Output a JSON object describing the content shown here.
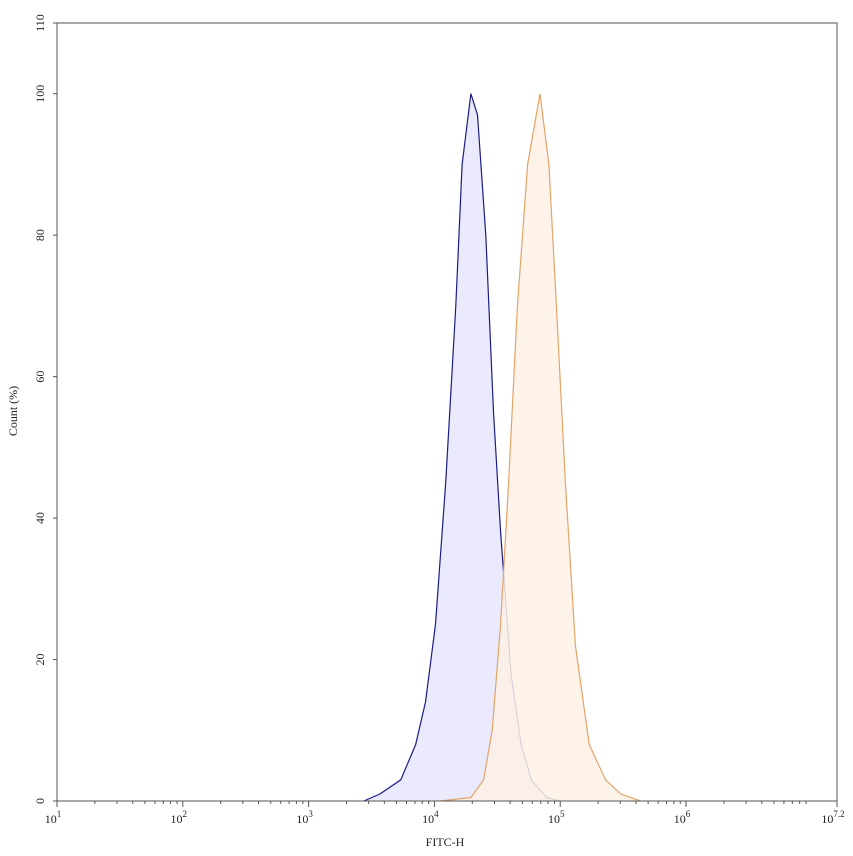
{
  "chart_data": {
    "type": "area",
    "x_label": "FITC-H",
    "y_label": "Count (%)",
    "x_scale": "log",
    "xlim": [
      10,
      15848931.92
    ],
    "ylim": [
      0,
      110
    ],
    "xticks": [
      {
        "value": 10,
        "label": "10",
        "exponent": "1"
      },
      {
        "value": 100,
        "label": "10",
        "exponent": "2"
      },
      {
        "value": 1000,
        "label": "10",
        "exponent": "3"
      },
      {
        "value": 10000,
        "label": "10",
        "exponent": "4"
      },
      {
        "value": 100000,
        "label": "10",
        "exponent": "5"
      },
      {
        "value": 1000000,
        "label": "10",
        "exponent": "6"
      },
      {
        "value": 15848931.92,
        "label": "10",
        "exponent": "7.2"
      }
    ],
    "yticks": [
      0,
      20,
      40,
      60,
      80,
      100,
      110
    ],
    "series": [
      {
        "color": "#1c1c86",
        "fill": "#e6e6fb",
        "x": [
          2750,
          3700,
          5400,
          7100,
          8500,
          10200,
          12300,
          14800,
          16600,
          19500,
          22000,
          25600,
          29500,
          33600,
          40600,
          48900,
          58900,
          77800,
          100000
        ],
        "values": [
          0,
          1,
          3,
          8,
          14,
          25,
          45,
          70,
          90,
          100,
          97,
          80,
          55,
          38,
          18,
          8,
          3,
          0.5,
          0
        ]
      },
      {
        "color": "#e3a468",
        "fill": "#fdf1e5",
        "x": [
          11200,
          19500,
          24600,
          28800,
          33600,
          38900,
          45700,
          55000,
          69000,
          81300,
          93300,
          110000,
          132000,
          170000,
          229000,
          302000,
          436000
        ],
        "values": [
          0,
          0.5,
          3,
          10,
          25,
          45,
          70,
          90,
          100,
          90,
          70,
          45,
          22,
          8,
          3,
          1,
          0
        ]
      }
    ]
  }
}
